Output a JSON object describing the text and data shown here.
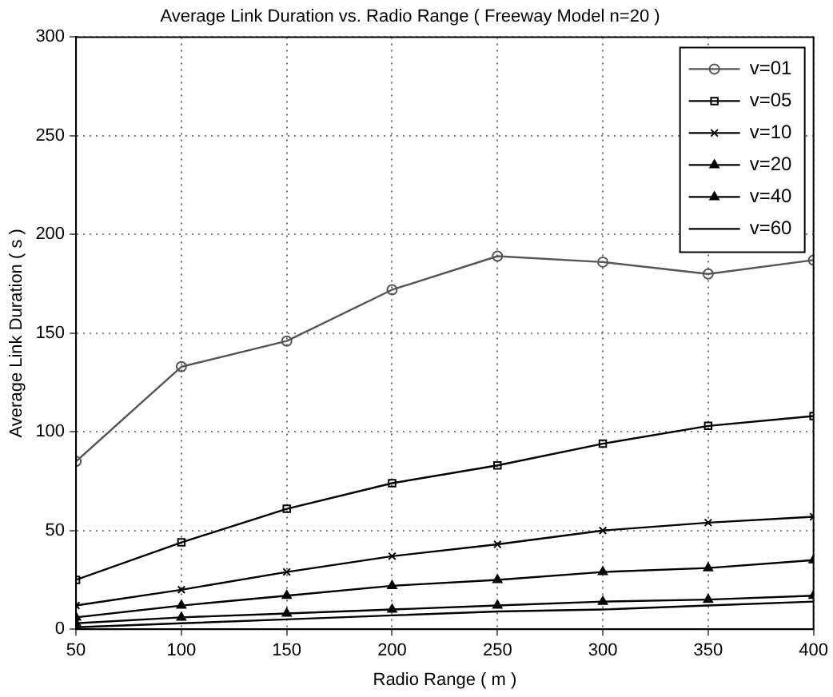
{
  "chart_data": {
    "type": "line",
    "title": "Average Link Duration vs. Radio Range ( Freeway Model n=20 )",
    "xlabel": "Radio Range ( m )",
    "ylabel": "Average Link Duration ( s )",
    "x": [
      50,
      100,
      150,
      200,
      250,
      300,
      350,
      400
    ],
    "xlim": [
      50,
      400
    ],
    "xticks": [
      50,
      100,
      150,
      200,
      250,
      300,
      350,
      400
    ],
    "ylim": [
      0,
      300
    ],
    "yticks": [
      0,
      50,
      100,
      150,
      200,
      250,
      300
    ],
    "grid": true,
    "legend": "top right",
    "line_style": "solid",
    "series": [
      {
        "name": "v=01",
        "color": "#555555",
        "marker": "circle",
        "values": [
          85,
          133,
          146,
          172,
          189,
          186,
          180,
          187
        ]
      },
      {
        "name": "v=05",
        "color": "#000000",
        "marker": "square",
        "values": [
          25,
          44,
          61,
          74,
          83,
          94,
          103,
          108
        ]
      },
      {
        "name": "v=10",
        "color": "#000000",
        "marker": "cross",
        "values": [
          12,
          20,
          29,
          37,
          43,
          50,
          54,
          57
        ]
      },
      {
        "name": "v=20",
        "color": "#000000",
        "marker": "triangle",
        "values": [
          6,
          12,
          17,
          22,
          25,
          29,
          31,
          35
        ]
      },
      {
        "name": "v=40",
        "color": "#000000",
        "marker": "triangle",
        "values": [
          3,
          6,
          8,
          10,
          12,
          14,
          15,
          17
        ]
      },
      {
        "name": "v=60",
        "color": "#000000",
        "marker": "none",
        "values": [
          1,
          3,
          5,
          7,
          9,
          10,
          12,
          14
        ]
      }
    ]
  }
}
